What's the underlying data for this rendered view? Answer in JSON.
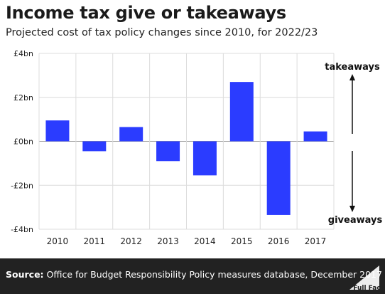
{
  "title": "Income tax give or takeaways",
  "subtitle": "Projected cost of tax policy changes since 2010, for 2022/23",
  "source_label": "Source:",
  "source_text": "Office for Budget Responsibility Policy measures database, December 2017",
  "brand": "Full Fact",
  "colors": {
    "bar": "#2b3cff",
    "footer": "#222222"
  },
  "chart_data": {
    "type": "bar",
    "categories": [
      "2010",
      "2011",
      "2012",
      "2013",
      "2014",
      "2015",
      "2016",
      "2017"
    ],
    "values": [
      0.95,
      -0.45,
      0.65,
      -0.9,
      -1.55,
      2.7,
      -3.35,
      0.45
    ],
    "ylim": [
      -4,
      4
    ],
    "yticks": [
      4,
      2,
      0,
      -2,
      -4
    ],
    "ytick_labels": [
      "£4bn",
      "£2bn",
      "£0bn",
      "-£2bn",
      "-£4bn"
    ],
    "grid": true,
    "annotations": {
      "up": "takeaways",
      "down": "giveaways"
    }
  }
}
